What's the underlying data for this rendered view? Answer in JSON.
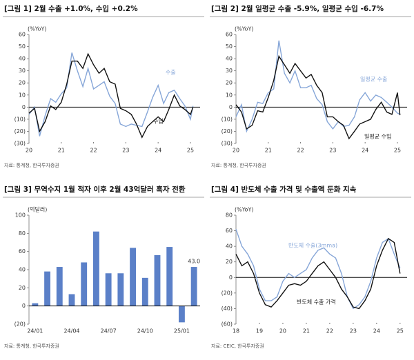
{
  "chart_data": [
    {
      "type": "line",
      "title": "[그림 1] 2월 수출 +1.0%, 수입 +0.2%",
      "y_label": "(%YoY)",
      "source": "자료: 통계청, 한국투자증권",
      "x": [
        20,
        20.17,
        20.33,
        20.5,
        20.67,
        20.83,
        21,
        21.17,
        21.33,
        21.5,
        21.67,
        21.83,
        22,
        22.17,
        22.33,
        22.5,
        22.67,
        22.83,
        23,
        23.17,
        23.33,
        23.5,
        23.67,
        23.83,
        24,
        24.17,
        24.33,
        24.5,
        24.67,
        24.83,
        25,
        25.08
      ],
      "series": [
        {
          "name": "수출",
          "color": "#86a6d8",
          "values": [
            -6,
            0,
            -24,
            -7,
            7,
            4,
            11,
            16,
            45,
            30,
            17,
            32,
            15,
            18,
            21,
            9,
            3,
            -14,
            -16,
            -14,
            -15,
            -16,
            -4,
            8,
            18,
            3,
            12,
            14,
            7,
            1,
            -10,
            1
          ]
        },
        {
          "name": "수입",
          "color": "#111111",
          "values": [
            -5,
            -1,
            -20,
            -12,
            1,
            -2,
            4,
            19,
            38,
            38,
            32,
            44,
            35,
            28,
            32,
            21,
            19,
            -1,
            -3,
            -6,
            -14,
            -25,
            -16,
            -12,
            -8,
            -12,
            -2,
            10,
            1,
            -2,
            -6,
            0
          ]
        }
      ],
      "xlim": [
        20,
        25.3
      ],
      "xticks": [
        20,
        21,
        22,
        23,
        24,
        25
      ],
      "ylim": [
        -30,
        60
      ],
      "yticks": [
        {
          "value": -30,
          "label": "(30)"
        },
        {
          "value": -20,
          "label": "(20)"
        },
        {
          "value": -10,
          "label": "(10)"
        },
        0,
        10,
        20,
        30,
        40,
        50,
        60
      ]
    },
    {
      "type": "line",
      "title": "[그림 2] 2월 일평균 수출 -5.9%, 일평균 수입 -6.7%",
      "y_label": "(%YoY)",
      "source": "자료: 통계청, 한국투자증권",
      "x": [
        20,
        20.17,
        20.33,
        20.5,
        20.67,
        20.83,
        21,
        21.17,
        21.33,
        21.5,
        21.67,
        21.83,
        22,
        22.17,
        22.33,
        22.5,
        22.67,
        22.83,
        23,
        23.17,
        23.33,
        23.5,
        23.67,
        23.83,
        24,
        24.17,
        24.33,
        24.5,
        24.67,
        24.83,
        25,
        25.08
      ],
      "series": [
        {
          "name": "일평균 수출",
          "color": "#86a6d8",
          "values": [
            -8,
            2,
            -20,
            -10,
            4,
            3,
            12,
            15,
            55,
            28,
            20,
            30,
            16,
            16,
            18,
            7,
            2,
            -12,
            -18,
            -12,
            -16,
            -15,
            -8,
            6,
            12,
            5,
            10,
            8,
            4,
            0,
            -5,
            -5.9
          ]
        },
        {
          "name": "일평균 수입",
          "color": "#111111",
          "values": [
            2,
            -4,
            -18,
            -15,
            -3,
            -4,
            8,
            22,
            42,
            35,
            28,
            36,
            30,
            24,
            27,
            18,
            12,
            -8,
            -8,
            -12,
            -15,
            -26,
            -20,
            -14,
            -12,
            -10,
            -2,
            4,
            -4,
            -6,
            12,
            -6.7
          ]
        }
      ],
      "xlim": [
        20,
        25.3
      ],
      "xticks": [
        20,
        21,
        22,
        23,
        24,
        25
      ],
      "ylim": [
        -30,
        60
      ],
      "yticks": [
        {
          "value": -30,
          "label": "(30)"
        },
        {
          "value": -20,
          "label": "(20)"
        },
        {
          "value": -10,
          "label": "(10)"
        },
        0,
        10,
        20,
        30,
        40,
        50,
        60
      ]
    },
    {
      "type": "bar",
      "title": "[그림 3] 무역수지 1월 적자 이후 2월 43억달러 흑자 전환",
      "y_label": "(억달러)",
      "source": "자료: 통계청, 한국투자증권",
      "categories": [
        "24/01",
        null,
        null,
        "24/04",
        null,
        null,
        "24/07",
        null,
        null,
        "24/10",
        null,
        null,
        "25/01",
        null
      ],
      "values": [
        3,
        38,
        43,
        13,
        48,
        82,
        36,
        36,
        64,
        31,
        56,
        65,
        -18,
        43
      ],
      "value_labels": [
        null,
        null,
        null,
        null,
        null,
        null,
        null,
        null,
        null,
        null,
        null,
        null,
        null,
        "43.0"
      ],
      "color": "#5b80c8",
      "ylim": [
        -20,
        100
      ],
      "yticks": [
        {
          "value": -20,
          "label": "(20)"
        },
        0,
        20,
        40,
        60,
        80,
        100
      ]
    },
    {
      "type": "line",
      "title": "[그림 4] 반도체 수출 가격 및 수출액 둔화 지속",
      "y_label": "(%YoY)",
      "source": "자료: CEIC, 한국투자증권",
      "x": [
        18,
        18.25,
        18.5,
        18.75,
        19,
        19.25,
        19.5,
        19.75,
        20,
        20.25,
        20.5,
        20.75,
        21,
        21.25,
        21.5,
        21.75,
        22,
        22.25,
        22.5,
        22.75,
        23,
        23.25,
        23.5,
        23.75,
        24,
        24.25,
        24.5,
        24.75,
        25
      ],
      "series": [
        {
          "name": "반도체 수출(3mma)",
          "color": "#86a6d8",
          "values": [
            62,
            40,
            30,
            15,
            -15,
            -30,
            -30,
            -25,
            -5,
            5,
            0,
            5,
            10,
            25,
            35,
            38,
            30,
            25,
            5,
            -25,
            -40,
            -35,
            -25,
            -5,
            25,
            45,
            50,
            30,
            12
          ]
        },
        {
          "name": "반도체 수출 가격",
          "color": "#111111",
          "values": [
            30,
            15,
            20,
            5,
            -20,
            -35,
            -38,
            -30,
            -20,
            -10,
            -8,
            -10,
            -5,
            5,
            15,
            20,
            10,
            0,
            -15,
            -25,
            -38,
            -40,
            -30,
            -15,
            15,
            35,
            50,
            45,
            5
          ]
        }
      ],
      "xlim": [
        18,
        25.3
      ],
      "xticks": [
        18,
        19,
        20,
        21,
        22,
        23,
        24,
        25
      ],
      "ylim": [
        -60,
        80
      ],
      "yticks": [
        {
          "value": -60,
          "label": "(60)"
        },
        {
          "value": -40,
          "label": "(40)"
        },
        {
          "value": -20,
          "label": "(20)"
        },
        0,
        20,
        40,
        60,
        80
      ]
    }
  ]
}
